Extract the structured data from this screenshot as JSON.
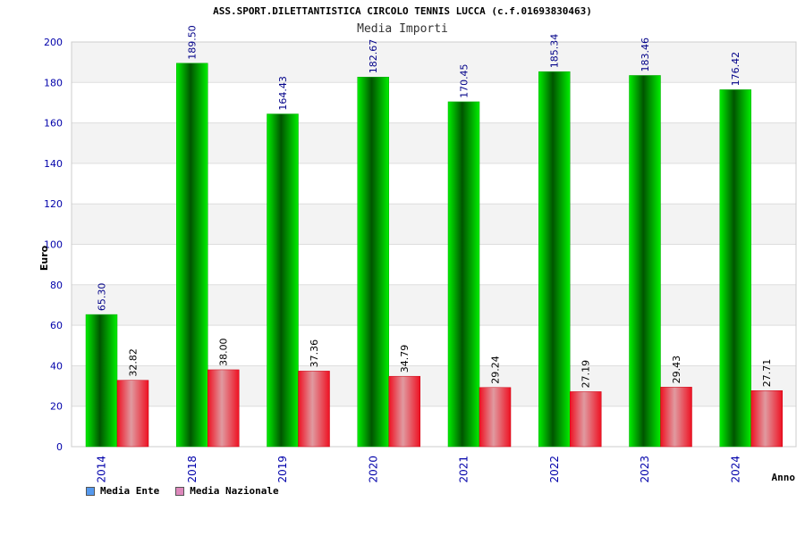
{
  "chart_data": {
    "type": "bar",
    "title": "ASS.SPORT.DILETTANTISTICA CIRCOLO TENNIS LUCCA (c.f.01693830463)",
    "subtitle": "Media Importi",
    "xlabel": "Anno",
    "ylabel": "Euro",
    "ylim": [
      0,
      200
    ],
    "yticks": [
      0,
      20,
      40,
      60,
      80,
      100,
      120,
      140,
      160,
      180,
      200
    ],
    "categories": [
      "2014",
      "2018",
      "2019",
      "2020",
      "2021",
      "2022",
      "2023",
      "2024"
    ],
    "series": [
      {
        "name": "Media Ente",
        "values": [
          65.3,
          189.5,
          164.43,
          182.67,
          170.45,
          185.34,
          183.46,
          176.42
        ],
        "labels": [
          "65.30",
          "189.50",
          "164.43",
          "182.67",
          "170.45",
          "185.34",
          "183.46",
          "176.42"
        ],
        "color": "#00cc00",
        "legend_color": "#5599ee"
      },
      {
        "name": "Media Nazionale",
        "values": [
          32.82,
          38.0,
          37.36,
          34.79,
          29.24,
          27.19,
          29.43,
          27.71
        ],
        "labels": [
          "32.82",
          "38.00",
          "37.36",
          "34.79",
          "29.24",
          "27.19",
          "29.43",
          "27.71"
        ],
        "color": "#ee1122",
        "legend_color": "#dd88bb"
      }
    ],
    "grid": true,
    "legend_position": "bottom-left"
  }
}
